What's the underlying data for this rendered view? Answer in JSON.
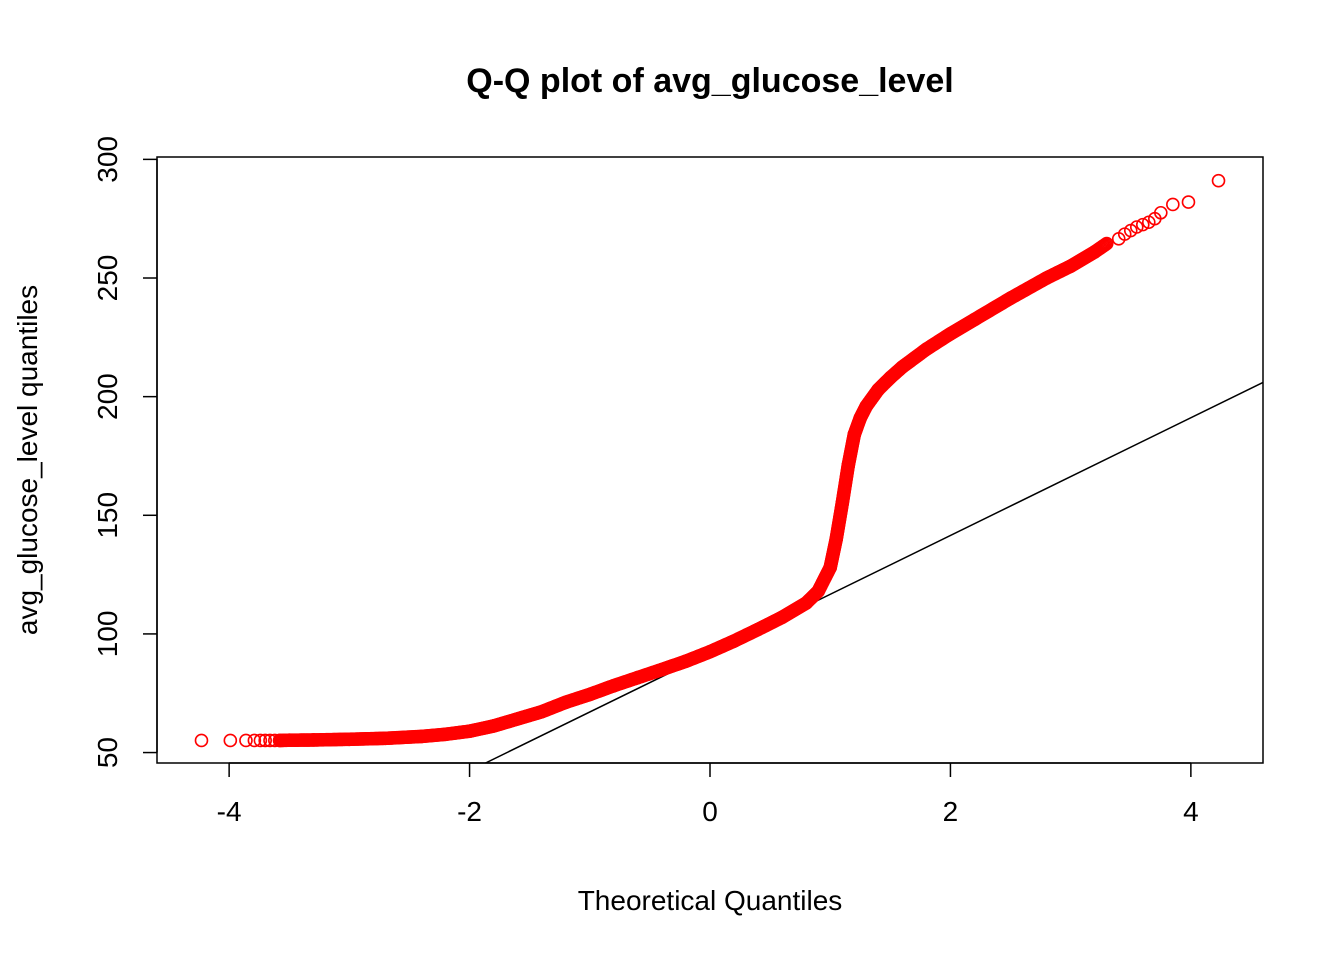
{
  "chart_data": {
    "type": "scatter",
    "title": "Q-Q plot of avg_glucose_level",
    "xlabel": "Theoretical Quantiles",
    "ylabel": "avg_glucose_level quantiles",
    "xlim": [
      -4.6,
      4.6
    ],
    "ylim": [
      45.6,
      301.0
    ],
    "x_ticks": [
      -4,
      -2,
      0,
      2,
      4
    ],
    "x_tick_labels": [
      "-4",
      "-2",
      "0",
      "2",
      "4"
    ],
    "y_ticks": [
      50,
      100,
      150,
      200,
      250,
      300
    ],
    "y_tick_labels": [
      "50",
      "100",
      "150",
      "200",
      "250",
      "300"
    ],
    "grid": false,
    "point_color": "#ff0000",
    "line_color": "#000000",
    "reference_line": {
      "intercept": 91.9,
      "slope": 24.8
    },
    "series": [
      {
        "x": [
          -4.23,
          -3.99,
          -3.86,
          -3.79,
          -3.74,
          -3.7,
          -3.66,
          -3.62,
          -3.58,
          -3.5,
          -3.3,
          -3.0,
          -2.7,
          -2.4,
          -2.2,
          -2.0,
          -1.8,
          -1.6,
          -1.4,
          -1.2,
          -1.0,
          -0.8,
          -0.6,
          -0.4,
          -0.2,
          0.0,
          0.2,
          0.4,
          0.6,
          0.8,
          0.9,
          1.0,
          1.05,
          1.1,
          1.15,
          1.2,
          1.25,
          1.3,
          1.4,
          1.5,
          1.6,
          1.8,
          2.0,
          2.2,
          2.5,
          2.8,
          3.0,
          3.2,
          3.3,
          3.4,
          3.45,
          3.5,
          3.55,
          3.6,
          3.65,
          3.7,
          3.75,
          3.85,
          3.98,
          4.23
        ],
        "y": [
          55.1,
          55.1,
          55.1,
          55.1,
          55.1,
          55.1,
          55.1,
          55.1,
          55.1,
          55.2,
          55.3,
          55.6,
          56.0,
          56.8,
          57.7,
          59.0,
          61.2,
          64.2,
          67.2,
          71.2,
          74.5,
          78.2,
          81.6,
          85.0,
          88.5,
          92.5,
          97.0,
          101.9,
          107.0,
          113.0,
          118.0,
          128.0,
          140.0,
          155.0,
          171.0,
          184.0,
          191.0,
          196.0,
          203.0,
          208.0,
          212.5,
          220.0,
          226.5,
          232.5,
          241.5,
          250.0,
          255.0,
          261.0,
          264.5,
          266.5,
          268.5,
          270.0,
          271.5,
          272.5,
          273.5,
          275.0,
          277.5,
          281.0,
          282.0,
          291.0
        ]
      }
    ]
  }
}
